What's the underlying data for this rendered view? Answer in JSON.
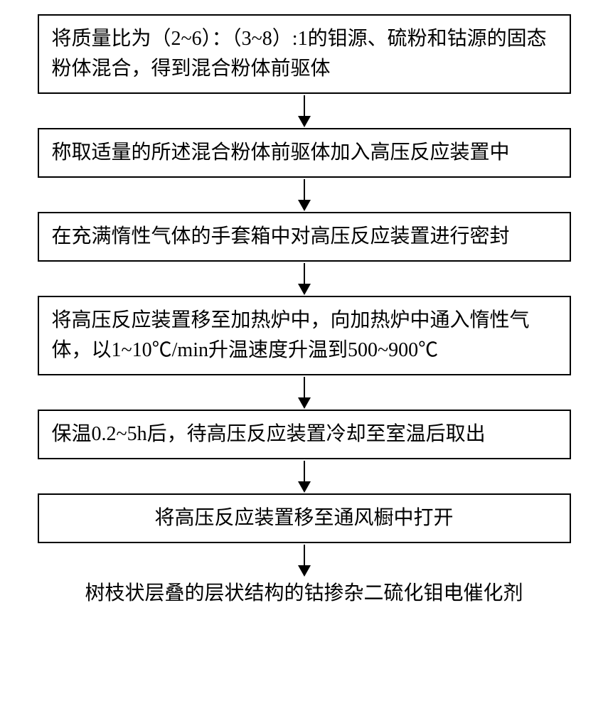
{
  "flowchart": {
    "type": "flowchart",
    "direction": "vertical",
    "box_border_color": "#000000",
    "box_border_width": 2,
    "box_background": "#ffffff",
    "arrow_color": "#000000",
    "text_color": "#000000",
    "font_family": "SimSun",
    "font_size_pt": 21,
    "steps": [
      {
        "text": "将质量比为（2~6）：（3~8）:1的钼源、硫粉和钴源的固态粉体混合，得到混合粉体前驱体",
        "multiline": true
      },
      {
        "text": "称取适量的所述混合粉体前驱体加入高压反应装置中",
        "multiline": false
      },
      {
        "text": "在充满惰性气体的手套箱中对高压反应装置进行密封",
        "multiline": false
      },
      {
        "text": "将高压反应装置移至加热炉中，向加热炉中通入惰性气体，以1~10℃/min升温速度升温到500~900℃",
        "multiline": true
      },
      {
        "text": "保温0.2~5h后，待高压反应装置冷却至室温后取出",
        "multiline": false
      },
      {
        "text": "将高压反应装置移至通风橱中打开",
        "multiline": false
      }
    ],
    "result": "树枝状层叠的层状结构的钴掺杂二硫化钼电催化剂"
  }
}
